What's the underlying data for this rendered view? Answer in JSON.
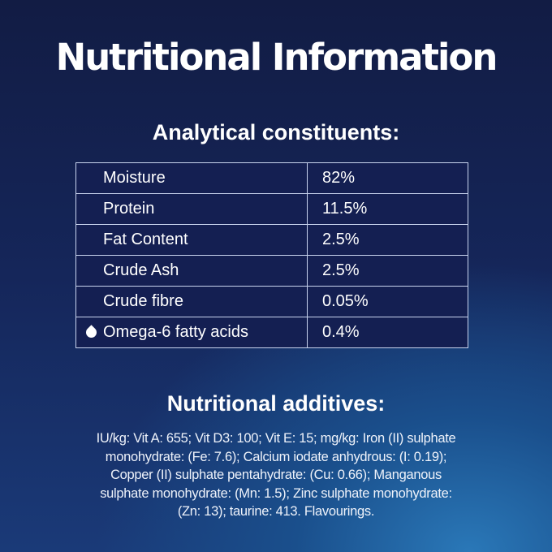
{
  "title": "Nutritional Information",
  "constituents": {
    "heading": "Analytical constituents:",
    "rows": [
      {
        "name": "Moisture",
        "value": "82%"
      },
      {
        "name": "Protein",
        "value": "11.5%"
      },
      {
        "name": "Fat Content",
        "value": "2.5%"
      },
      {
        "name": "Crude Ash",
        "value": "2.5%"
      },
      {
        "name": "Crude fibre",
        "value": "0.05%"
      },
      {
        "name": "Omega-6 fatty acids",
        "value": "0.4%",
        "icon": "water-drop-icon"
      }
    ]
  },
  "additives": {
    "heading": "Nutritional additives:",
    "lines": [
      "IU/kg: Vit A: 655; Vit D3: 100; Vit E: 15; mg/kg: Iron (II) sulphate",
      "monohydrate: (Fe: 7.6); Calcium iodate anhydrous: (I: 0.19);",
      "Copper (II) sulphate pentahydrate: (Cu: 0.66); Manganous",
      "sulphate monohydrate: (Mn: 1.5); Zinc sulphate monohydrate:",
      "(Zn: 13); taurine: 413. Flavourings."
    ]
  }
}
